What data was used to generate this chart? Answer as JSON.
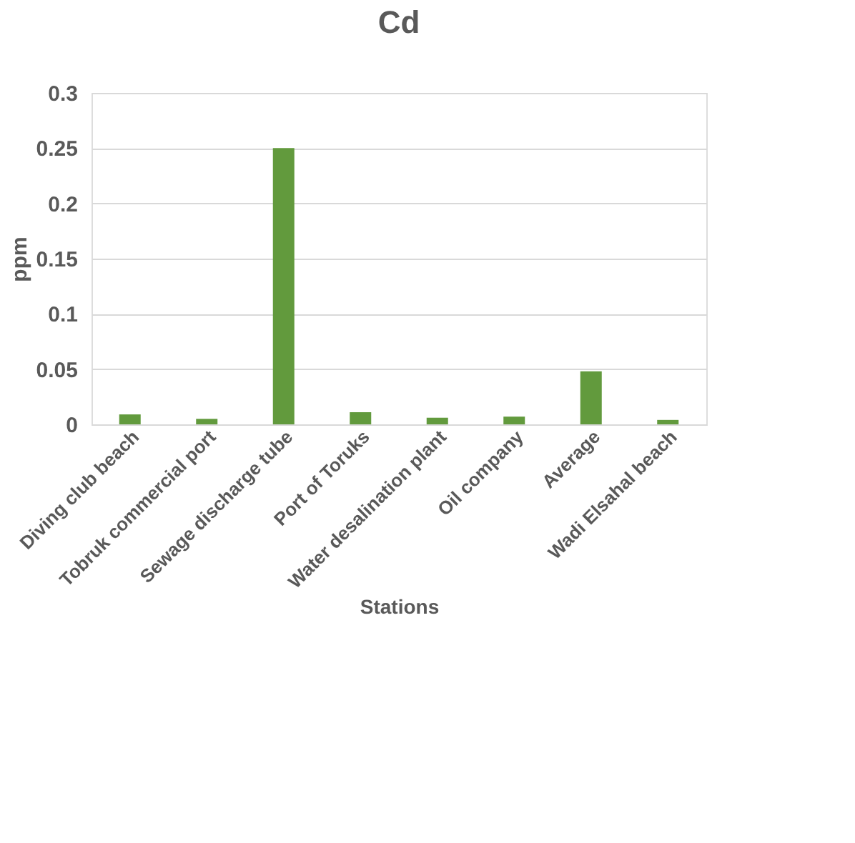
{
  "chart_data": {
    "type": "bar",
    "title": "Cd",
    "xlabel": "Stations",
    "ylabel": "ppm",
    "categories": [
      "Diving club beach",
      "Tobruk commercial port",
      "Sewage discharge tube",
      "Port of Toruks",
      "Water desalination plant",
      "Oil company",
      "Average",
      "Wadi Elsahal beach"
    ],
    "values": [
      0.009,
      0.005,
      0.25,
      0.011,
      0.006,
      0.007,
      0.048,
      0.004
    ],
    "color": "#629a3d",
    "ylim": [
      0,
      0.3
    ],
    "yticks": [
      0,
      0.05,
      0.1,
      0.15,
      0.2,
      0.25,
      0.3
    ],
    "grid": "y"
  }
}
